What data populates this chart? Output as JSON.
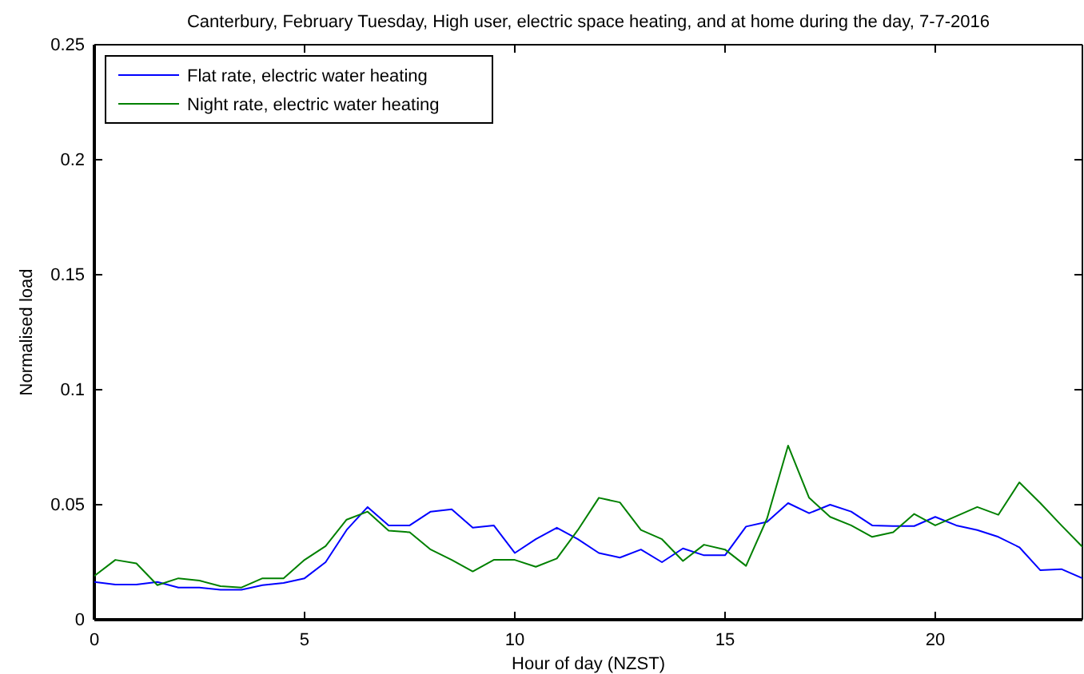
{
  "chart_data": {
    "type": "line",
    "title": "Canterbury, February Tuesday, High user, electric space heating, and at home during the day, 7-7-2016",
    "xlabel": "Hour of day (NZST)",
    "ylabel": "Normalised load",
    "x": [
      0,
      0.5,
      1,
      1.5,
      2,
      2.5,
      3,
      3.5,
      4,
      4.5,
      5,
      5.5,
      6,
      6.5,
      7,
      7.5,
      8,
      8.5,
      9,
      9.5,
      10,
      10.5,
      11,
      11.5,
      12,
      12.5,
      13,
      13.5,
      14,
      14.5,
      15,
      15.5,
      16,
      16.5,
      17,
      17.5,
      18,
      18.5,
      19,
      19.5,
      20,
      20.5,
      21,
      21.5,
      22,
      22.5,
      23,
      23.5
    ],
    "series": [
      {
        "name": "Flat rate, electric water heating",
        "color": "#0000ff",
        "values": [
          0.0164,
          0.0153,
          0.0153,
          0.0164,
          0.014,
          0.014,
          0.013,
          0.013,
          0.015,
          0.016,
          0.018,
          0.025,
          0.039,
          0.049,
          0.041,
          0.041,
          0.047,
          0.048,
          0.04,
          0.041,
          0.029,
          0.035,
          0.04,
          0.035,
          0.029,
          0.027,
          0.0305,
          0.025,
          0.031,
          0.028,
          0.028,
          0.0405,
          0.0425,
          0.0507,
          0.0463,
          0.05,
          0.047,
          0.041,
          0.0407,
          0.0407,
          0.0447,
          0.041,
          0.039,
          0.036,
          0.0315,
          0.0215,
          0.022,
          0.018
        ]
      },
      {
        "name": "Night rate, electric water heating",
        "color": "#008000",
        "values": [
          0.019,
          0.026,
          0.0245,
          0.015,
          0.018,
          0.017,
          0.0146,
          0.014,
          0.018,
          0.018,
          0.026,
          0.032,
          0.0435,
          0.047,
          0.0387,
          0.038,
          0.0305,
          0.026,
          0.021,
          0.026,
          0.026,
          0.023,
          0.0266,
          0.039,
          0.053,
          0.051,
          0.039,
          0.035,
          0.0255,
          0.0326,
          0.0305,
          0.0234,
          0.044,
          0.0757,
          0.053,
          0.0447,
          0.041,
          0.036,
          0.038,
          0.046,
          0.041,
          0.045,
          0.049,
          0.0456,
          0.0597,
          0.0507,
          0.041,
          0.0317
        ]
      }
    ],
    "xlim": [
      0,
      23.5
    ],
    "ylim": [
      0,
      0.25
    ],
    "xticks": [
      0,
      5,
      10,
      15,
      20
    ],
    "yticks": [
      0,
      0.05,
      0.1,
      0.15,
      0.2,
      0.25
    ],
    "grid": false,
    "legend": "top left",
    "line_style": "solid",
    "marker": "none"
  }
}
